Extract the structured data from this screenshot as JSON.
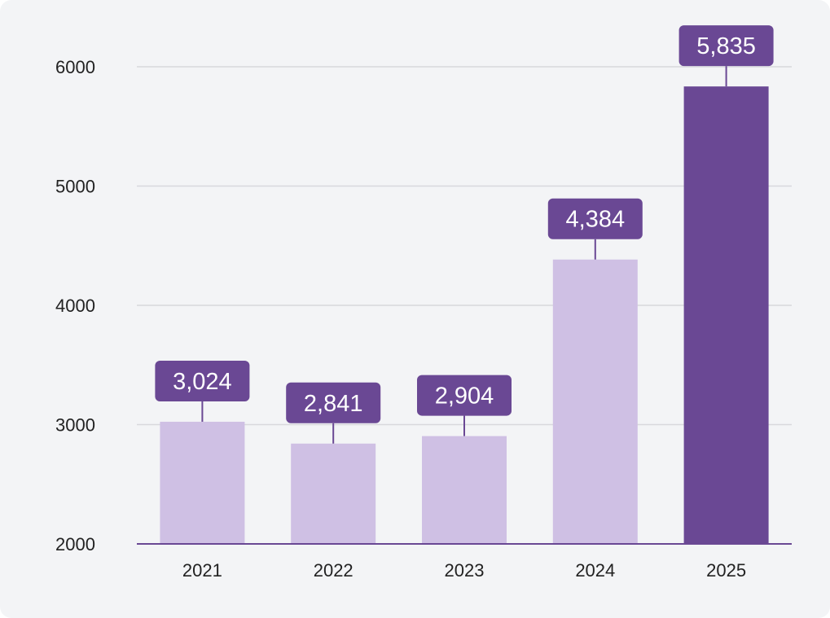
{
  "chart_data": {
    "type": "bar",
    "title": "",
    "xlabel": "",
    "ylabel": "",
    "categories": [
      "2021",
      "2022",
      "2023",
      "2024",
      "2025"
    ],
    "values": [
      3024,
      2841,
      2904,
      4384,
      5835
    ],
    "data_labels": [
      "3,024",
      "2,841",
      "2,904",
      "4,384",
      "5,835"
    ],
    "ylim": [
      2000,
      6000
    ],
    "yticks": [
      2000,
      3000,
      4000,
      5000,
      6000
    ],
    "ytick_labels": [
      "2000",
      "3000",
      "4000",
      "5000",
      "6000"
    ],
    "highlight_index": 4,
    "grid": true,
    "colors": {
      "bar": "#cfc0e4",
      "highlight": "#6a4894",
      "label_bg": "#6a4894",
      "label_text": "#ffffff",
      "grid": "#d8d8dc",
      "axis": "#6a4894",
      "background": "#f3f4f6"
    }
  }
}
